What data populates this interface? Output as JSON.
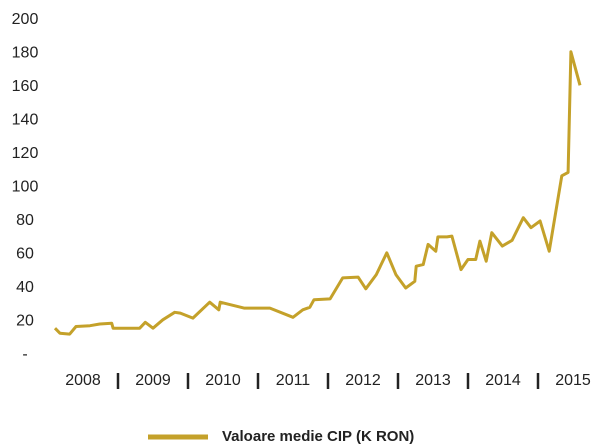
{
  "chart_data": {
    "type": "line",
    "x": [
      2008.1,
      2008.17,
      2008.31,
      2008.4,
      2008.6,
      2008.74,
      2008.91,
      2008.93,
      2009.31,
      2009.39,
      2009.5,
      2009.64,
      2009.81,
      2009.89,
      2010.07,
      2010.31,
      2010.44,
      2010.46,
      2010.8,
      2011.17,
      2011.5,
      2011.64,
      2011.74,
      2011.8,
      2012.03,
      2012.21,
      2012.43,
      2012.54,
      2012.69,
      2012.84,
      2012.97,
      2013.11,
      2013.24,
      2013.26,
      2013.36,
      2013.43,
      2013.54,
      2013.57,
      2013.7,
      2013.77,
      2013.9,
      2014.0,
      2014.11,
      2014.17,
      2014.26,
      2014.34,
      2014.49,
      2014.63,
      2014.79,
      2014.9,
      2015.03,
      2015.16,
      2015.34,
      2015.43,
      2015.47,
      2015.6
    ],
    "series": [
      {
        "name": "Valoare medie CIP (K RON)",
        "color": "#c4a12a",
        "values": [
          16,
          13,
          12.5,
          17,
          17.5,
          18.5,
          19,
          16,
          16,
          19.5,
          16,
          21,
          25.5,
          25,
          22,
          31.5,
          27,
          31.5,
          28,
          28,
          22.5,
          27,
          28.5,
          33,
          33.5,
          46,
          46.5,
          39.5,
          48,
          61,
          48,
          40,
          44,
          53,
          54,
          66,
          62,
          70.5,
          70.5,
          71,
          51,
          57,
          57,
          68,
          56,
          73,
          65,
          68.5,
          82,
          76,
          80,
          62,
          107,
          109,
          181,
          161
        ]
      }
    ],
    "xlim": [
      2008,
      2015.7
    ],
    "xticks": [
      {
        "value": 2008.5,
        "label": "2008"
      },
      {
        "value": 2009.5,
        "label": "2009"
      },
      {
        "value": 2010.5,
        "label": "2010"
      },
      {
        "value": 2011.5,
        "label": "2011"
      },
      {
        "value": 2012.5,
        "label": "2012"
      },
      {
        "value": 2013.5,
        "label": "2013"
      },
      {
        "value": 2014.5,
        "label": "2014"
      },
      {
        "value": 2015.5,
        "label": "2015"
      }
    ],
    "ylim": [
      0,
      200
    ],
    "yticks": [
      {
        "value": 0,
        "label": "-"
      },
      20,
      40,
      60,
      80,
      100,
      120,
      140,
      160,
      180,
      200
    ],
    "legend": "bottom"
  }
}
